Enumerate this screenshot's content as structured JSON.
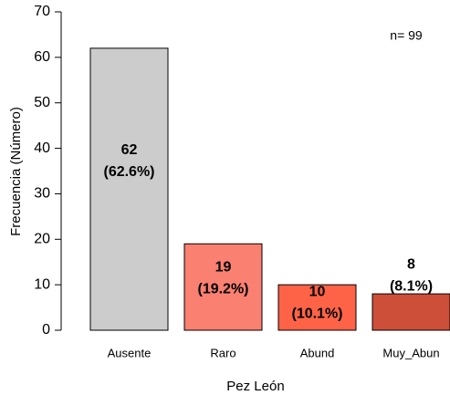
{
  "chart_data": {
    "type": "bar",
    "x_label": "Pez León",
    "y_label": "Frecuencia (Número)",
    "annotation": "n= 99",
    "categories": [
      "Ausente",
      "Raro",
      "Abund",
      "Muy_Abun"
    ],
    "values": [
      62,
      19,
      10,
      8
    ],
    "percent_labels": [
      "(62.6%)",
      "(19.2%)",
      "(10.1%)",
      "(8.1%)"
    ],
    "colors": [
      "#cccccc",
      "#fa8072",
      "#ff6347",
      "#cd4f39"
    ],
    "ylim": [
      0,
      70
    ],
    "yticks": [
      0,
      10,
      20,
      30,
      40,
      50,
      60,
      70
    ]
  }
}
